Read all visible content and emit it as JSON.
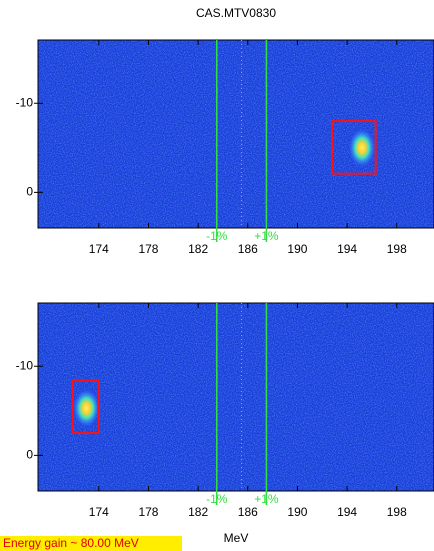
{
  "chart_data": [
    {
      "type": "image",
      "title": "CAS.MTV0830",
      "xlim": [
        169.1,
        201
      ],
      "ylim": [
        4,
        -17.1
      ],
      "xticks": [
        174,
        178,
        182,
        186,
        190,
        194,
        198
      ],
      "yticks": [
        -10,
        0
      ],
      "marker_lines": [
        {
          "value": 183.5,
          "label": "-1%"
        },
        {
          "value": 187.5,
          "label": "+1%"
        }
      ],
      "center_line": 185.5,
      "spot": {
        "x": 195.2,
        "y": -5
      },
      "box": {
        "x": [
          192.8,
          196.3
        ],
        "y": [
          -8,
          -2.1
        ]
      }
    },
    {
      "type": "image",
      "xlabel": "MeV",
      "annotation": "Energy gain ~ 80.00 MeV",
      "xlim": [
        169.1,
        201
      ],
      "ylim": [
        4,
        -17.1
      ],
      "xticks": [
        174,
        178,
        182,
        186,
        190,
        194,
        198
      ],
      "yticks": [
        -10,
        0
      ],
      "marker_lines": [
        {
          "value": 183.5,
          "label": "-1%"
        },
        {
          "value": 187.5,
          "label": "+1%"
        }
      ],
      "center_line": 185.5,
      "spot": {
        "x": 173,
        "y": -5.3
      },
      "box": {
        "x": [
          171.9,
          174
        ],
        "y": [
          -8.4,
          -2.5
        ]
      }
    }
  ]
}
